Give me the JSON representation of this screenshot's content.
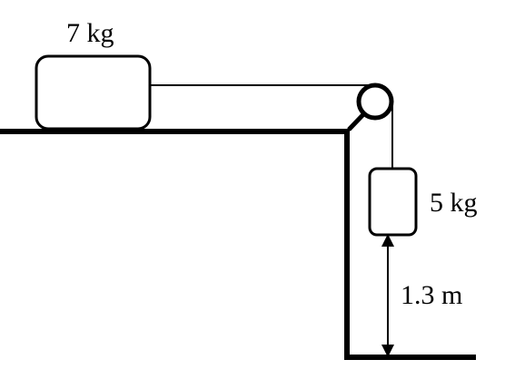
{
  "labels": {
    "block_mass": "7 kg",
    "hanging_mass": "5 kg",
    "drop_height": "1.3 m"
  },
  "colors": {
    "stroke": "#000000",
    "background": "#ffffff"
  }
}
